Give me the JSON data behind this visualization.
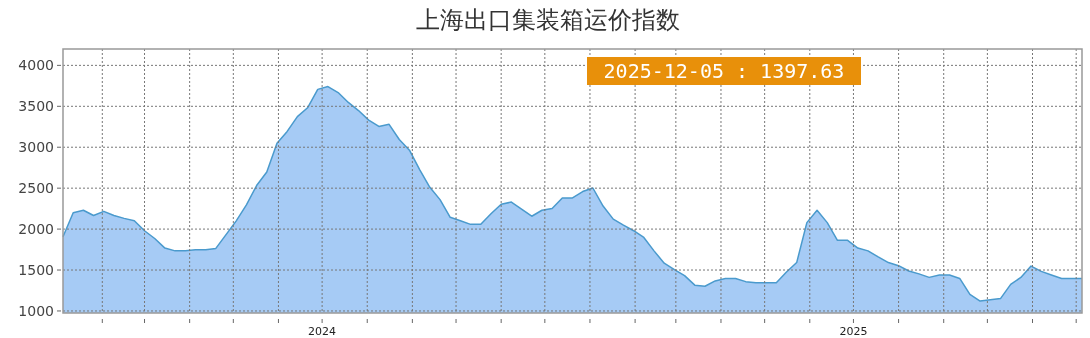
{
  "chart_data": {
    "type": "area",
    "title": "上海出口集装箱运价指数",
    "annotations": [
      "2025-12-05 : 1397.63"
    ],
    "x": [
      "2024-01-05",
      "2024-01-12",
      "2024-01-19",
      "2024-01-26",
      "2024-02-02",
      "2024-02-09",
      "2024-02-16",
      "2024-02-23",
      "2024-03-01",
      "2024-03-08",
      "2024-03-15",
      "2024-03-22",
      "2024-03-29",
      "2024-04-05",
      "2024-04-12",
      "2024-04-19",
      "2024-05-03",
      "2024-05-10",
      "2024-05-17",
      "2024-05-24",
      "2024-05-31",
      "2024-06-07",
      "2024-06-14",
      "2024-06-21",
      "2024-06-28",
      "2024-07-05",
      "2024-07-12",
      "2024-07-19",
      "2024-07-26",
      "2024-08-02",
      "2024-08-09",
      "2024-08-16",
      "2024-08-23",
      "2024-08-30",
      "2024-09-06",
      "2024-09-13",
      "2024-09-20",
      "2024-09-27",
      "2024-10-04",
      "2024-10-11",
      "2024-10-18",
      "2024-10-25",
      "2024-11-01",
      "2024-11-08",
      "2024-11-15",
      "2024-11-22",
      "2024-11-29",
      "2024-12-06",
      "2024-12-13",
      "2024-12-20",
      "2024-12-27",
      "2025-01-03",
      "2025-01-10",
      "2025-01-17",
      "2025-01-24",
      "2025-01-31",
      "2025-02-07",
      "2025-02-14",
      "2025-02-21",
      "2025-02-28",
      "2025-03-07",
      "2025-03-14",
      "2025-03-21",
      "2025-03-28",
      "2025-04-04",
      "2025-04-11",
      "2025-04-18",
      "2025-04-25",
      "2025-05-02",
      "2025-05-09",
      "2025-05-16",
      "2025-05-23",
      "2025-05-30",
      "2025-06-06",
      "2025-06-13",
      "2025-06-20",
      "2025-06-27",
      "2025-07-04",
      "2025-07-11",
      "2025-07-18",
      "2025-07-25",
      "2025-08-01",
      "2025-08-08",
      "2025-08-15",
      "2025-08-22",
      "2025-08-29",
      "2025-09-05",
      "2025-09-12",
      "2025-09-19",
      "2025-09-26",
      "2025-10-03",
      "2025-10-10",
      "2025-10-17",
      "2025-10-24",
      "2025-10-31",
      "2025-11-07",
      "2025-11-14",
      "2025-11-21",
      "2025-11-28",
      "2025-12-05"
    ],
    "series": [
      {
        "color": "#4a9acd",
        "values": [
          1906,
          2200,
          2230,
          2166,
          2217,
          2166,
          2131,
          2101,
          1980,
          1885,
          1768,
          1734,
          1734,
          1747,
          1747,
          1764,
          2101,
          2295,
          2532,
          2697,
          3050,
          3193,
          3374,
          3482,
          3707,
          3741,
          3668,
          3547,
          3448,
          3331,
          3254,
          3280,
          3094,
          2964,
          2727,
          2511,
          2360,
          2144,
          2101,
          2058,
          2058,
          2187,
          2304,
          2330,
          2243,
          2157,
          2230,
          2252,
          2381,
          2381,
          2459,
          2502,
          2282,
          2122,
          2049,
          1980,
          1898,
          1734,
          1583,
          1505,
          1432,
          1315,
          1302,
          1367,
          1397,
          1397,
          1358,
          1345,
          1345,
          1345,
          1475,
          1591,
          2079,
          2230,
          2079,
          1863,
          1863,
          1768,
          1734,
          1660,
          1591,
          1553,
          1488,
          1453,
          1410,
          1440,
          1440,
          1397,
          1203,
          1121,
          1138,
          1151,
          1324,
          1410,
          1548,
          1483,
          1440,
          1397,
          1397,
          1397.63
        ]
      }
    ],
    "xlim": [
      "2024-01-05",
      "2025-12-05"
    ],
    "xticks": [
      {
        "value": "2024-02-01",
        "label": null
      },
      {
        "value": "2024-03-01",
        "label": null
      },
      {
        "value": "2024-04-01",
        "label": null
      },
      {
        "value": "2024-05-01",
        "label": null
      },
      {
        "value": "2024-06-01",
        "label": null
      },
      {
        "value": "2024-07-01",
        "label": "2024"
      },
      {
        "value": "2024-08-01",
        "label": null
      },
      {
        "value": "2024-09-01",
        "label": null
      },
      {
        "value": "2024-10-01",
        "label": null
      },
      {
        "value": "2024-11-01",
        "label": null
      },
      {
        "value": "2024-12-01",
        "label": null
      },
      {
        "value": "2025-01-01",
        "label": null
      },
      {
        "value": "2025-02-01",
        "label": null
      },
      {
        "value": "2025-03-01",
        "label": null
      },
      {
        "value": "2025-04-01",
        "label": null
      },
      {
        "value": "2025-05-01",
        "label": null
      },
      {
        "value": "2025-06-01",
        "label": null
      },
      {
        "value": "2025-07-01",
        "label": "2025"
      },
      {
        "value": "2025-08-01",
        "label": null
      },
      {
        "value": "2025-09-01",
        "label": null
      },
      {
        "value": "2025-10-01",
        "label": null
      },
      {
        "value": "2025-11-01",
        "label": null
      },
      {
        "value": "2025-12-01",
        "label": null
      }
    ],
    "ylim": [
      975,
      4200
    ],
    "yticks": [
      1000,
      1500,
      2000,
      2500,
      3000,
      3500,
      4000
    ],
    "grid": true
  }
}
